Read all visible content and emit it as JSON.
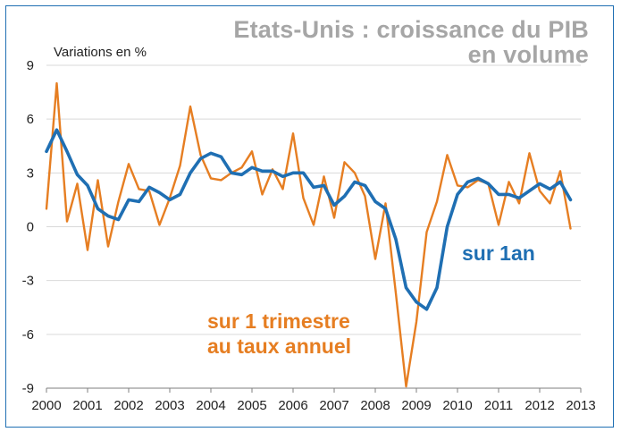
{
  "chart_data": {
    "type": "line",
    "title": [
      "Etats-Unis : croissance du PIB",
      "en volume"
    ],
    "ylabel": "Variations en %",
    "ylim": [
      -9,
      9
    ],
    "yticks": [
      "9",
      "6",
      "3",
      "0",
      "-3",
      "-6",
      "-9"
    ],
    "ytick_values": [
      9,
      6,
      3,
      0,
      -3,
      -6,
      -9
    ],
    "xticks": [
      "2000",
      "2001",
      "2002",
      "2003",
      "2004",
      "2005",
      "2006",
      "2007",
      "2008",
      "2009",
      "2010",
      "2011",
      "2012",
      "2013"
    ],
    "xlim": [
      2000,
      2013
    ],
    "grid": "horizontal",
    "annotations": {
      "yearly": "sur 1an",
      "quarterly_line1": "sur 1 trimestre",
      "quarterly_line2": "au taux annuel"
    },
    "series": [
      {
        "key": "quarterly",
        "color": "#e67e22",
        "x": [
          2000.0,
          2000.25,
          2000.5,
          2000.75,
          2001.0,
          2001.25,
          2001.5,
          2001.75,
          2002.0,
          2002.25,
          2002.5,
          2002.75,
          2003.0,
          2003.25,
          2003.5,
          2003.75,
          2004.0,
          2004.25,
          2004.5,
          2004.75,
          2005.0,
          2005.25,
          2005.5,
          2005.75,
          2006.0,
          2006.25,
          2006.5,
          2006.75,
          2007.0,
          2007.25,
          2007.5,
          2007.75,
          2008.0,
          2008.25,
          2008.5,
          2008.75,
          2009.0,
          2009.25,
          2009.5,
          2009.75,
          2010.0,
          2010.25,
          2010.5,
          2010.75,
          2011.0,
          2011.25,
          2011.5,
          2011.75,
          2012.0,
          2012.25,
          2012.5,
          2012.75
        ],
        "values": [
          1.0,
          8.0,
          0.3,
          2.4,
          -1.3,
          2.6,
          -1.1,
          1.4,
          3.5,
          2.1,
          2.0,
          0.1,
          1.6,
          3.4,
          6.7,
          4.0,
          2.7,
          2.6,
          3.0,
          3.3,
          4.2,
          1.8,
          3.2,
          2.1,
          5.2,
          1.6,
          0.1,
          2.8,
          0.5,
          3.6,
          3.0,
          1.7,
          -1.8,
          1.3,
          -3.7,
          -8.9,
          -5.3,
          -0.3,
          1.4,
          4.0,
          2.3,
          2.2,
          2.6,
          2.4,
          0.1,
          2.5,
          1.3,
          4.1,
          2.0,
          1.3,
          3.1,
          -0.1
        ]
      },
      {
        "key": "yearly",
        "color": "#1f6fb3",
        "x": [
          2000.0,
          2000.25,
          2000.5,
          2000.75,
          2001.0,
          2001.25,
          2001.5,
          2001.75,
          2002.0,
          2002.25,
          2002.5,
          2002.75,
          2003.0,
          2003.25,
          2003.5,
          2003.75,
          2004.0,
          2004.25,
          2004.5,
          2004.75,
          2005.0,
          2005.25,
          2005.5,
          2005.75,
          2006.0,
          2006.25,
          2006.5,
          2006.75,
          2007.0,
          2007.25,
          2007.5,
          2007.75,
          2008.0,
          2008.25,
          2008.5,
          2008.75,
          2009.0,
          2009.25,
          2009.5,
          2009.75,
          2010.0,
          2010.25,
          2010.5,
          2010.75,
          2011.0,
          2011.25,
          2011.5,
          2011.75,
          2012.0,
          2012.25,
          2012.5,
          2012.75
        ],
        "values": [
          4.2,
          5.4,
          4.2,
          2.9,
          2.3,
          1.0,
          0.6,
          0.4,
          1.5,
          1.4,
          2.2,
          1.9,
          1.5,
          1.8,
          3.0,
          3.8,
          4.1,
          3.9,
          3.0,
          2.9,
          3.3,
          3.1,
          3.1,
          2.8,
          3.0,
          3.0,
          2.2,
          2.3,
          1.2,
          1.7,
          2.5,
          2.3,
          1.4,
          1.0,
          -0.7,
          -3.4,
          -4.2,
          -4.6,
          -3.4,
          0.0,
          1.8,
          2.5,
          2.7,
          2.4,
          1.8,
          1.8,
          1.6,
          2.0,
          2.4,
          2.1,
          2.5,
          1.5
        ]
      }
    ]
  }
}
